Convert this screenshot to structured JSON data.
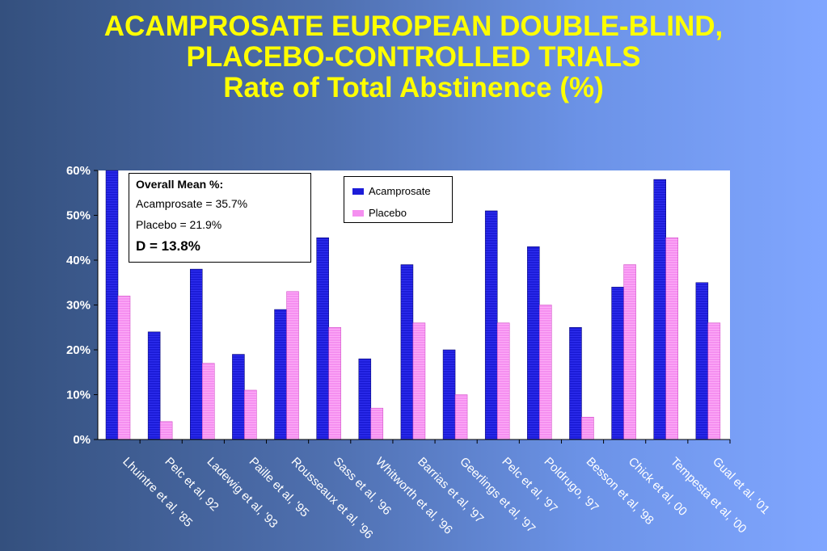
{
  "title": {
    "line1": "ACAMPROSATE EUROPEAN DOUBLE-BLIND,",
    "line2": "PLACEBO-CONTROLLED TRIALS",
    "line3": "Rate of Total Abstinence (%)"
  },
  "annotation": {
    "heading": "Overall Mean %:",
    "acamprosate": "Acamprosate = 35.7%",
    "placebo": "Placebo =  21.9%",
    "difference": "D = 13.8%"
  },
  "colors": {
    "acamprosate": "#1c1cd8",
    "placebo": "#f58ff0",
    "title": "#ffff00"
  },
  "chart_data": {
    "type": "bar",
    "title": "Rate of Total Abstinence (%)",
    "categories": [
      "Lhuintre et al, '85",
      "Pelc et al, 92",
      "Ladewig et al, '93",
      "Paille et al, '95",
      "Rousseaux et al, '96",
      "Sass et al, '96",
      "Whitworth et al, '96",
      "Barrias et al, '97",
      "Geerlings et al, '97",
      "Pelc et al, '97",
      "Poldrugo, '97",
      "Besson et al, '98",
      "Chick et al, 00",
      "Tempesta et al, '00",
      "Gual et al. '01"
    ],
    "series": [
      {
        "name": "Acamprosate",
        "values": [
          60,
          24,
          38,
          19,
          29,
          45,
          18,
          39,
          20,
          51,
          43,
          25,
          34,
          58,
          35
        ]
      },
      {
        "name": "Placebo",
        "values": [
          32,
          4,
          17,
          11,
          33,
          25,
          7,
          26,
          10,
          26,
          30,
          5,
          39,
          45,
          26
        ]
      }
    ],
    "yticks": [
      "0%",
      "10%",
      "20%",
      "30%",
      "40%",
      "50%",
      "60%"
    ],
    "ylim": [
      0,
      60
    ],
    "legend": "top-center"
  }
}
